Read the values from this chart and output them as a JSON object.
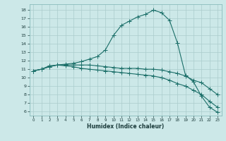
{
  "xlabel": "Humidex (Indice chaleur)",
  "bg_color": "#cce8e8",
  "grid_color": "#aacccc",
  "line_color": "#1a6e68",
  "xlim": [
    -0.5,
    23.5
  ],
  "ylim": [
    5.5,
    18.7
  ],
  "xticks": [
    0,
    1,
    2,
    3,
    4,
    5,
    6,
    7,
    8,
    9,
    10,
    11,
    12,
    13,
    14,
    15,
    16,
    17,
    18,
    19,
    20,
    21,
    22,
    23
  ],
  "yticks": [
    6,
    7,
    8,
    9,
    10,
    11,
    12,
    13,
    14,
    15,
    16,
    17,
    18
  ],
  "curve1_x": [
    0,
    1,
    2,
    3,
    4,
    5,
    6,
    7,
    8,
    9,
    10,
    11,
    12,
    13,
    14,
    15,
    16,
    17,
    18,
    19,
    20,
    21,
    22,
    23
  ],
  "curve1_y": [
    10.8,
    11.0,
    11.3,
    11.5,
    11.6,
    11.7,
    11.9,
    12.2,
    12.5,
    13.3,
    15.0,
    16.2,
    16.7,
    17.2,
    17.5,
    18.0,
    17.7,
    16.8,
    14.1,
    10.3,
    9.5,
    7.8,
    6.5,
    5.9
  ],
  "curve2_x": [
    0,
    1,
    2,
    3,
    4,
    5,
    6,
    7,
    8,
    9,
    10,
    11,
    12,
    13,
    14,
    15,
    16,
    17,
    18,
    19,
    20,
    21,
    22,
    23
  ],
  "curve2_y": [
    10.8,
    11.0,
    11.4,
    11.5,
    11.5,
    11.5,
    11.5,
    11.5,
    11.4,
    11.3,
    11.2,
    11.1,
    11.1,
    11.1,
    11.0,
    11.0,
    10.9,
    10.7,
    10.5,
    10.2,
    9.7,
    9.4,
    8.7,
    8.0
  ],
  "curve3_x": [
    0,
    1,
    2,
    3,
    4,
    5,
    6,
    7,
    8,
    9,
    10,
    11,
    12,
    13,
    14,
    15,
    16,
    17,
    18,
    19,
    20,
    21,
    22,
    23
  ],
  "curve3_y": [
    10.8,
    11.0,
    11.3,
    11.5,
    11.4,
    11.3,
    11.1,
    11.0,
    10.9,
    10.8,
    10.7,
    10.6,
    10.5,
    10.4,
    10.3,
    10.2,
    10.0,
    9.7,
    9.3,
    9.0,
    8.5,
    8.0,
    7.2,
    6.5
  ]
}
